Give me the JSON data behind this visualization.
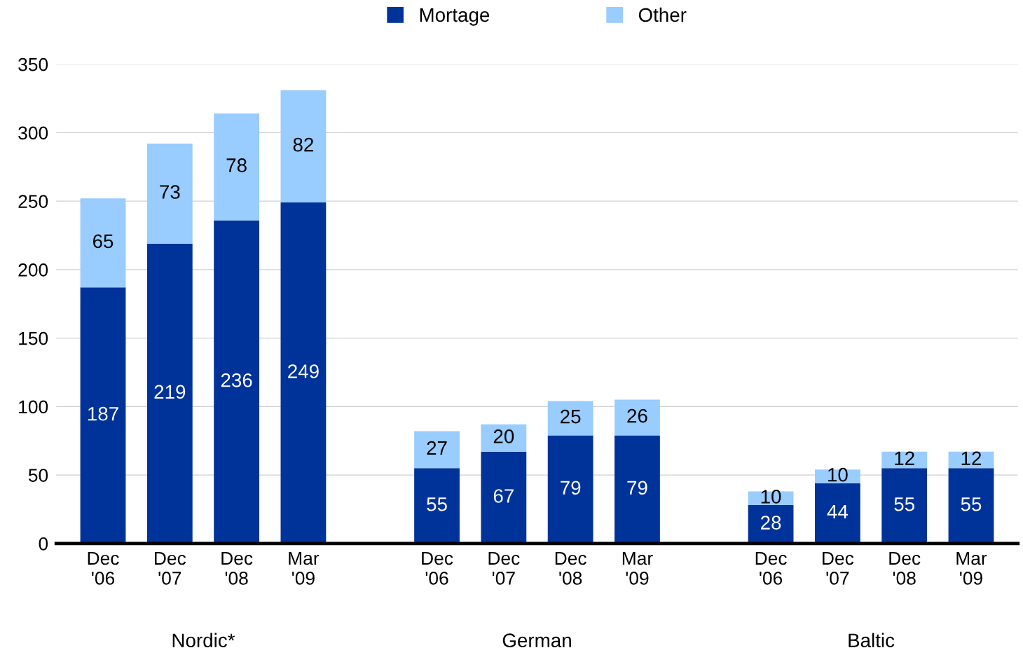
{
  "chart_data": {
    "type": "bar",
    "stacked": true,
    "categories": [
      "Dec '06",
      "Dec '07",
      "Dec '08",
      "Mar '09",
      null,
      "Dec '06",
      "Dec '07",
      "Dec '08",
      "Mar '09",
      null,
      "Dec '06",
      "Dec '07",
      "Dec '08",
      "Mar '09"
    ],
    "series": [
      {
        "name": "Mortage",
        "color": "#003399",
        "values": [
          187,
          219,
          236,
          249,
          null,
          55,
          67,
          79,
          79,
          null,
          28,
          44,
          55,
          55
        ]
      },
      {
        "name": "Other",
        "color": "#99ccff",
        "values": [
          65,
          73,
          78,
          82,
          null,
          27,
          20,
          25,
          26,
          null,
          10,
          10,
          12,
          12
        ]
      }
    ],
    "ylim": [
      0,
      350
    ],
    "yticks": [
      0,
      50,
      100,
      150,
      200,
      250,
      300,
      350
    ],
    "grid": "y",
    "legend": "top",
    "data_labels": true,
    "annotations": [
      "Nordic*",
      "German",
      "Baltic"
    ]
  }
}
